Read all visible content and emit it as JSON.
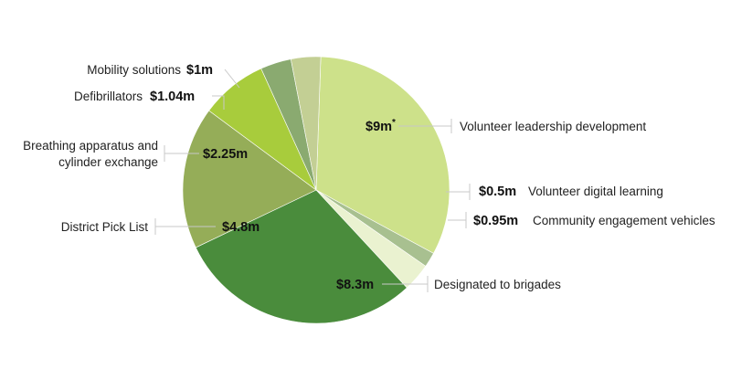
{
  "chart_data": {
    "type": "pie",
    "start_angle_deg": -88,
    "direction": "clockwise",
    "slices": [
      {
        "key": "vld",
        "label": "Volunteer leadership development",
        "value": 9,
        "value_label": "$9m",
        "value_note": "*",
        "color": "#cde18a"
      },
      {
        "key": "vdl",
        "label": "Volunteer digital learning",
        "value": 0.5,
        "value_label": "$0.5m",
        "color": "#a8c090"
      },
      {
        "key": "cev",
        "label": "Community engagement vehicles",
        "value": 0.95,
        "value_label": "$0.95m",
        "color": "#eaf2d0"
      },
      {
        "key": "dtb",
        "label": "Designated to brigades",
        "value": 8.3,
        "value_label": "$8.3m",
        "color": "#4a8c3c"
      },
      {
        "key": "dpl",
        "label": "District Pick List",
        "value": 4.8,
        "value_label": "$4.8m",
        "color": "#95ad58"
      },
      {
        "key": "bace",
        "label": "Breathing apparatus and cylinder exchange",
        "label_lines": [
          "Breathing apparatus and",
          "cylinder exchange"
        ],
        "value": 2.25,
        "value_label": "$2.25m",
        "color": "#a8cc3c"
      },
      {
        "key": "def",
        "label": "Defibrillators",
        "value": 1.04,
        "value_label": "$1.04m",
        "color": "#8aaa70"
      },
      {
        "key": "mob",
        "label": "Mobility solutions",
        "value": 1,
        "value_label": "$1m",
        "color": "#c3cf94"
      }
    ]
  }
}
